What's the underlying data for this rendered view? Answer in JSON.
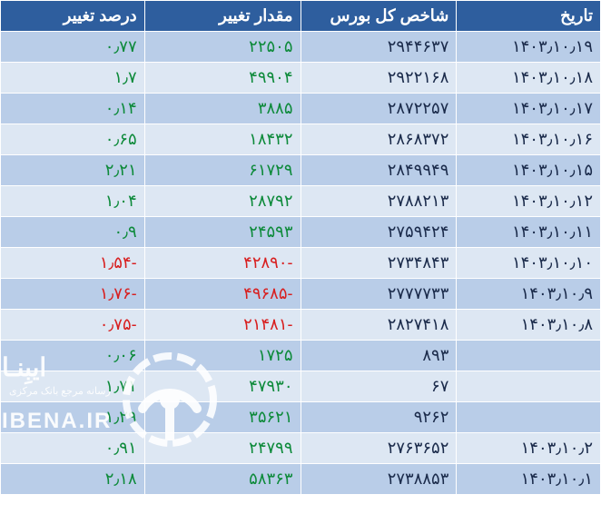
{
  "table": {
    "type": "table",
    "columns": [
      "تاریخ",
      "شاخص کل بورس",
      "مقدار تغییر",
      "درصد تغییر"
    ],
    "column_widths": [
      "24%",
      "26%",
      "26%",
      "24%"
    ],
    "header_bg": "#2e5e9e",
    "header_fg": "#ffffff",
    "row_odd_bg": "#b9cde8",
    "row_even_bg": "#dde7f3",
    "text_color": "#1a2a4a",
    "positive_color": "#0d8a3a",
    "negative_color": "#d81f1f",
    "border_color": "#ffffff",
    "font_size": 18,
    "rows": [
      {
        "date": "۱۴۰۳٫۱۰٫۱۹",
        "index": "۲۹۴۴۶۳۷",
        "change": "۲۲۵۰۵",
        "pct": "۰٫۷۷",
        "dir": "pos"
      },
      {
        "date": "۱۴۰۳٫۱۰٫۱۸",
        "index": "۲۹۲۲۱۶۸",
        "change": "۴۹۹۰۴",
        "pct": "۱٫۷",
        "dir": "pos"
      },
      {
        "date": "۱۴۰۳٫۱۰٫۱۷",
        "index": "۲۸۷۲۲۵۷",
        "change": "۳۸۸۵",
        "pct": "۰٫۱۴",
        "dir": "pos"
      },
      {
        "date": "۱۴۰۳٫۱۰٫۱۶",
        "index": "۲۸۶۸۳۷۲",
        "change": "۱۸۴۳۲",
        "pct": "۰٫۶۵",
        "dir": "pos"
      },
      {
        "date": "۱۴۰۳٫۱۰٫۱۵",
        "index": "۲۸۴۹۹۴۹",
        "change": "۶۱۷۲۹",
        "pct": "۲٫۲۱",
        "dir": "pos"
      },
      {
        "date": "۱۴۰۳٫۱۰٫۱۲",
        "index": "۲۷۸۸۲۱۳",
        "change": "۲۸۷۹۲",
        "pct": "۱٫۰۴",
        "dir": "pos"
      },
      {
        "date": "۱۴۰۳٫۱۰٫۱۱",
        "index": "۲۷۵۹۴۲۴",
        "change": "۲۴۵۹۳",
        "pct": "۰٫۹",
        "dir": "pos"
      },
      {
        "date": "۱۴۰۳٫۱۰٫۱۰",
        "index": "۲۷۳۴۸۴۳",
        "change": "-۴۲۸۹۰",
        "pct": "-۱٫۵۴",
        "dir": "neg"
      },
      {
        "date": "۱۴۰۳٫۱۰٫۹",
        "index": "۲۷۷۷۷۳۳",
        "change": "-۴۹۶۸۵",
        "pct": "-۱٫۷۶",
        "dir": "neg"
      },
      {
        "date": "۱۴۰۳٫۱۰٫۸",
        "index": "۲۸۲۷۴۱۸",
        "change": "-۲۱۴۸۱",
        "pct": "-۰٫۷۵",
        "dir": "neg"
      },
      {
        "date": "",
        "index": "۸۹۳",
        "change": "۱۷۲۵",
        "pct": "۰٫۰۶",
        "dir": "pos"
      },
      {
        "date": "",
        "index": "۶۷",
        "change": "۴۷۹۳۰",
        "pct": "۱٫۷۱",
        "dir": "pos"
      },
      {
        "date": "",
        "index": "۹۲۶۲",
        "change": "۳۵۶۲۱",
        "pct": "۱٫۲۹",
        "dir": "pos"
      },
      {
        "date": "۱۴۰۳٫۱۰٫۲",
        "index": "۲۷۶۳۶۵۲",
        "change": "۲۴۷۹۹",
        "pct": "۰٫۹۱",
        "dir": "pos"
      },
      {
        "date": "۱۴۰۳٫۱۰٫۱",
        "index": "۲۷۳۸۸۵۳",
        "change": "۵۸۳۶۳",
        "pct": "۲٫۱۸",
        "dir": "pos"
      }
    ]
  },
  "watermark": {
    "title": "ایبِنـا",
    "subtitle": "رسانه مرجع بانک مرکزی",
    "url": "IBENA.IR",
    "color": "#ffffff",
    "icon_circle_color": "#ffffff"
  }
}
